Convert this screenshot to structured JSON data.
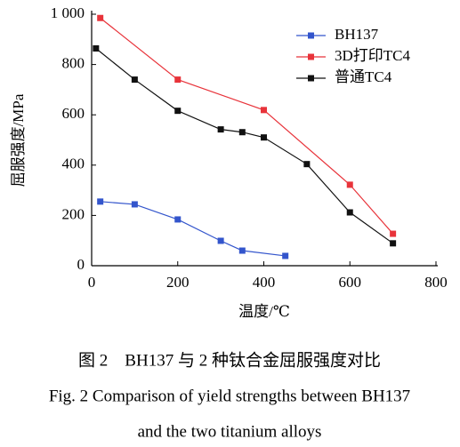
{
  "chart_data": {
    "type": "line",
    "xlabel": "温度/℃",
    "ylabel": "屈服强度/MPa",
    "caption": [
      "图 2　BH137 与 2 种钛合金屈服强度对比",
      "Fig. 2 Comparison of yield strengths between BH137",
      "and the two titanium alloys"
    ],
    "xlim": [
      0,
      800
    ],
    "xticks": [
      0,
      200,
      400,
      600,
      800
    ],
    "ylim": [
      0,
      1000
    ],
    "yticks": [
      0,
      200,
      400,
      600,
      800,
      {
        "value": 1000,
        "label": "1 000"
      }
    ],
    "legend": "upper right",
    "series": [
      {
        "name": "BH137",
        "color": "#3355cc",
        "x": [
          20,
          100,
          200,
          300,
          350,
          450
        ],
        "values": [
          255,
          244,
          184,
          99,
          60,
          39
        ]
      },
      {
        "name": "3D打印TC4",
        "color": "#e8333a",
        "x": [
          20,
          200,
          400,
          600,
          700
        ],
        "values": [
          985,
          740,
          619,
          322,
          127
        ]
      },
      {
        "name": "普通TC4",
        "color": "#111111",
        "x": [
          10,
          100,
          200,
          300,
          350,
          400,
          500,
          600,
          700
        ],
        "values": [
          864,
          740,
          616,
          542,
          531,
          510,
          404,
          212,
          89
        ]
      }
    ]
  }
}
